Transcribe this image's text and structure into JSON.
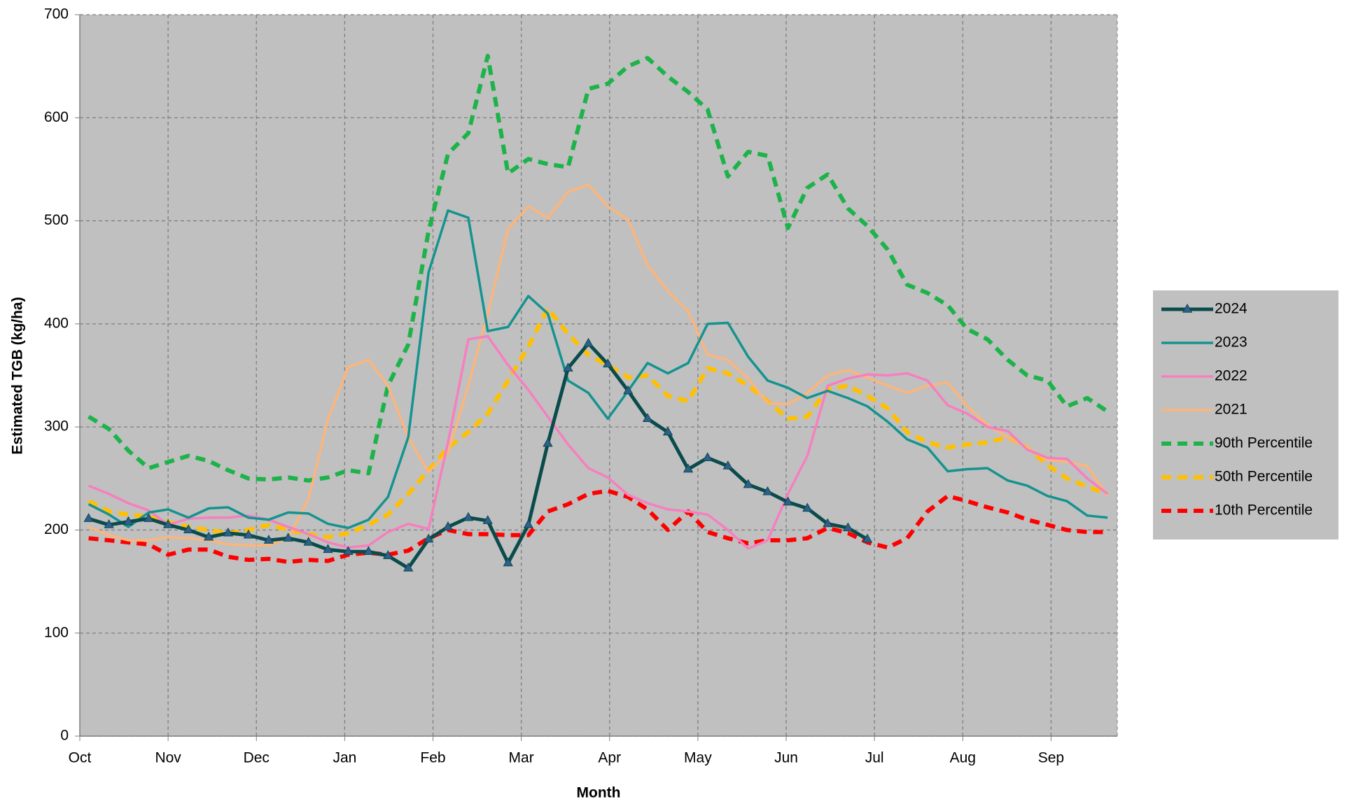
{
  "chart_data": {
    "type": "line",
    "x_label": "Month",
    "y_label": "Estimated TGB (kg/ha)",
    "x": [
      0.1,
      0.33,
      0.55,
      0.78,
      1.0,
      1.23,
      1.46,
      1.68,
      1.91,
      2.14,
      2.36,
      2.59,
      2.81,
      3.04,
      3.27,
      3.49,
      3.72,
      3.95,
      4.17,
      4.4,
      4.62,
      4.85,
      5.08,
      5.3,
      5.53,
      5.76,
      5.98,
      6.21,
      6.43,
      6.66,
      6.89,
      7.11,
      7.34,
      7.57,
      7.79,
      8.02,
      8.24,
      8.47,
      8.7,
      8.92,
      9.15,
      9.37,
      9.6,
      9.83,
      10.05,
      10.28,
      10.51,
      10.73,
      10.96,
      11.18,
      11.41,
      11.64
    ],
    "xlim": [
      0,
      11.75
    ],
    "xticks": [
      {
        "value": 0,
        "label": "Oct"
      },
      {
        "value": 1,
        "label": "Nov"
      },
      {
        "value": 2,
        "label": "Dec"
      },
      {
        "value": 3,
        "label": "Jan"
      },
      {
        "value": 4,
        "label": "Feb"
      },
      {
        "value": 5,
        "label": "Mar"
      },
      {
        "value": 6,
        "label": "Apr"
      },
      {
        "value": 7,
        "label": "May"
      },
      {
        "value": 8,
        "label": "Jun"
      },
      {
        "value": 9,
        "label": "Jul"
      },
      {
        "value": 10,
        "label": "Aug"
      },
      {
        "value": 11,
        "label": "Sep"
      }
    ],
    "ylim": [
      0,
      700
    ],
    "yticks": [
      0,
      100,
      200,
      300,
      400,
      500,
      600,
      700
    ],
    "grid": true,
    "legend": "right",
    "series": [
      {
        "name": "2024",
        "color": "#0b4b4b",
        "marker": "triangle",
        "marker_color": "#2f5f8f",
        "dash": false,
        "width": 5,
        "values": [
          211,
          205,
          208,
          211,
          205,
          200,
          193,
          197,
          195,
          190,
          192,
          188,
          181,
          179,
          179,
          175,
          163,
          191,
          203,
          212,
          209,
          168,
          205,
          284,
          357,
          381,
          361,
          335,
          308,
          295,
          259,
          270,
          262,
          244,
          237,
          227,
          221,
          206,
          202,
          191,
          null,
          null,
          null,
          null,
          null,
          null,
          null,
          null,
          null,
          null,
          null,
          null
        ]
      },
      {
        "name": "2023",
        "color": "#14938f",
        "dash": false,
        "width": 3.5,
        "values": [
          225,
          215,
          203,
          217,
          220,
          212,
          221,
          222,
          212,
          210,
          217,
          216,
          206,
          202,
          210,
          232,
          290,
          450,
          510,
          503,
          393,
          397,
          427,
          410,
          345,
          333,
          308,
          335,
          362,
          352,
          362,
          400,
          401,
          368,
          345,
          338,
          328,
          335,
          328,
          320,
          305,
          288,
          280,
          257,
          259,
          260,
          248,
          243,
          233,
          228,
          214,
          212
        ]
      },
      {
        "name": "2022",
        "color": "#f77fbf",
        "dash": false,
        "width": 3.5,
        "values": [
          243,
          235,
          226,
          219,
          205,
          211,
          212,
          212,
          214,
          210,
          203,
          196,
          188,
          183,
          185,
          198,
          206,
          201,
          285,
          385,
          388,
          360,
          336,
          310,
          283,
          260,
          251,
          234,
          226,
          220,
          218,
          215,
          200,
          182,
          190,
          235,
          272,
          340,
          347,
          351,
          350,
          352,
          345,
          321,
          313,
          300,
          296,
          278,
          270,
          269,
          250,
          235
        ]
      },
      {
        "name": "2021",
        "color": "#fcb57a",
        "dash": false,
        "width": 3.5,
        "values": [
          203,
          195,
          190,
          190,
          193,
          192,
          190,
          186,
          185,
          185,
          192,
          230,
          307,
          358,
          365,
          340,
          290,
          256,
          275,
          340,
          410,
          492,
          514,
          503,
          528,
          535,
          514,
          501,
          457,
          432,
          412,
          370,
          365,
          347,
          323,
          322,
          333,
          350,
          355,
          348,
          340,
          333,
          340,
          343,
          320,
          302,
          290,
          280,
          268,
          266,
          262,
          233
        ]
      },
      {
        "name": "90th Percentile",
        "color": "#1db34a",
        "dash": true,
        "width": 6,
        "values": [
          310,
          298,
          277,
          260,
          266,
          272,
          267,
          258,
          250,
          249,
          251,
          248,
          251,
          258,
          255,
          340,
          380,
          490,
          565,
          585,
          660,
          546,
          560,
          555,
          552,
          628,
          633,
          650,
          658,
          640,
          625,
          608,
          543,
          567,
          563,
          493,
          532,
          545,
          512,
          495,
          472,
          438,
          430,
          418,
          395,
          385,
          365,
          350,
          345,
          320,
          328,
          315
        ]
      },
      {
        "name": "50th Percentile",
        "color": "#ffc000",
        "dash": true,
        "width": 6,
        "values": [
          228,
          218,
          215,
          213,
          208,
          203,
          200,
          197,
          200,
          205,
          200,
          196,
          193,
          197,
          205,
          215,
          235,
          258,
          280,
          295,
          313,
          345,
          378,
          415,
          390,
          370,
          360,
          348,
          350,
          330,
          325,
          357,
          352,
          340,
          325,
          308,
          310,
          337,
          340,
          330,
          318,
          295,
          285,
          280,
          283,
          285,
          290,
          280,
          263,
          250,
          242,
          235
        ]
      },
      {
        "name": "10th Percentile",
        "color": "#ff0000",
        "dash": true,
        "width": 6,
        "values": [
          192,
          190,
          188,
          186,
          176,
          181,
          181,
          174,
          171,
          172,
          169,
          171,
          170,
          176,
          178,
          176,
          180,
          192,
          200,
          196,
          196,
          195,
          195,
          218,
          225,
          235,
          238,
          232,
          220,
          200,
          218,
          198,
          192,
          187,
          190,
          190,
          192,
          202,
          197,
          188,
          183,
          192,
          218,
          233,
          228,
          222,
          217,
          210,
          205,
          200,
          198,
          198
        ]
      }
    ]
  }
}
